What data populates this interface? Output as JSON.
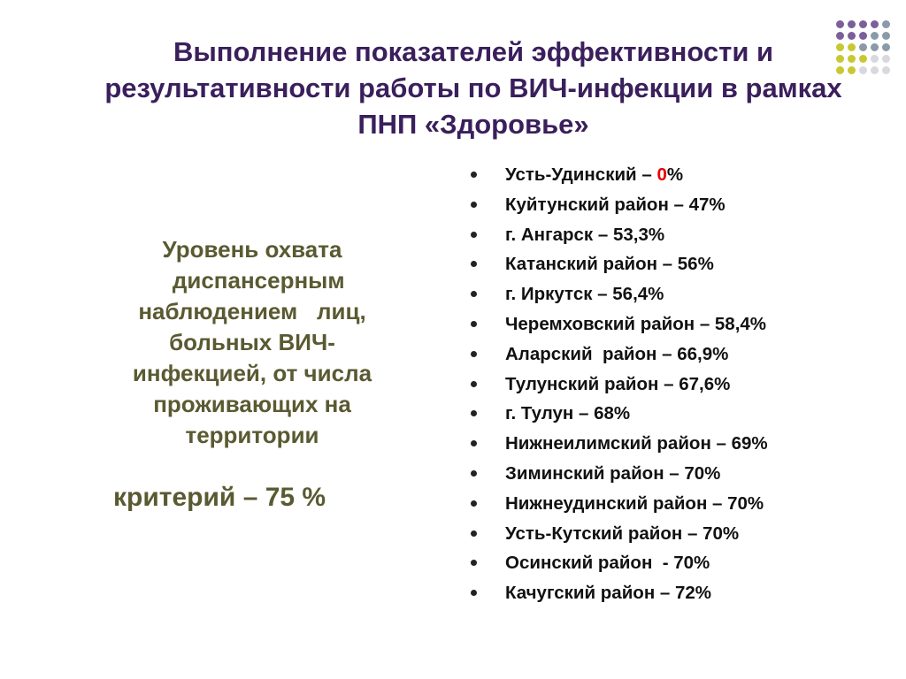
{
  "title": {
    "lines": [
      "Выполнение показателей эффективности и",
      "результативности работы по ВИЧ-инфекции в рамках",
      "ПНП «Здоровье»"
    ]
  },
  "left_panel": {
    "description_lines": [
      "Уровень охвата",
      "  диспансерным",
      "наблюдением   лиц,",
      "больных ВИЧ-",
      "инфекцией, от числа",
      "проживающих на",
      "территории"
    ],
    "criterion": "критерий – 75 %"
  },
  "results": [
    {
      "before": "Усть-Удинский – ",
      "highlight": "0",
      "after": "%"
    },
    {
      "before": "Куйтунский район – 47%",
      "highlight": "",
      "after": ""
    },
    {
      "before": "г. Ангарск – 53,3%",
      "highlight": "",
      "after": ""
    },
    {
      "before": "Катанский район – 56%",
      "highlight": "",
      "after": ""
    },
    {
      "before": "г. Иркутск – 56,4%",
      "highlight": "",
      "after": ""
    },
    {
      "before": "Черемховский район – 58,4%",
      "highlight": "",
      "after": ""
    },
    {
      "before": "Аларский  район – 66,9%",
      "highlight": "",
      "after": ""
    },
    {
      "before": "Тулунский район – 67,6%",
      "highlight": "",
      "after": ""
    },
    {
      "before": "г. Тулун – 68%",
      "highlight": "",
      "after": ""
    },
    {
      "before": "Нижнеилимский район – 69%",
      "highlight": "",
      "after": ""
    },
    {
      "before": "Зиминский район – 70%",
      "highlight": "",
      "after": ""
    },
    {
      "before": "Нижнеудинский район – 70%",
      "highlight": "",
      "after": ""
    },
    {
      "before": "Усть-Кутский район – 70%",
      "highlight": "",
      "after": ""
    },
    {
      "before": "Осинский район  - 70%",
      "highlight": "",
      "after": ""
    },
    {
      "before": "Качугский район – 72%",
      "highlight": "",
      "after": ""
    }
  ],
  "colors": {
    "title": "#3a1f5c",
    "left_text": "#5a5a32",
    "list_text": "#111111",
    "highlight": "#e60000",
    "dots": {
      "purple": "#7b5f9a",
      "gray": "#8a9aa8",
      "yellow": "#c8c832",
      "light": "#d8d8de"
    }
  },
  "decoration": {
    "dot_grid": [
      [
        "purple",
        "purple",
        "purple",
        "purple",
        "gray"
      ],
      [
        "purple",
        "purple",
        "purple",
        "gray",
        "gray"
      ],
      [
        "yellow",
        "yellow",
        "gray",
        "gray",
        "gray"
      ],
      [
        "yellow",
        "yellow",
        "yellow",
        "light",
        "light"
      ],
      [
        "yellow",
        "yellow",
        "light",
        "light",
        "light"
      ]
    ]
  }
}
